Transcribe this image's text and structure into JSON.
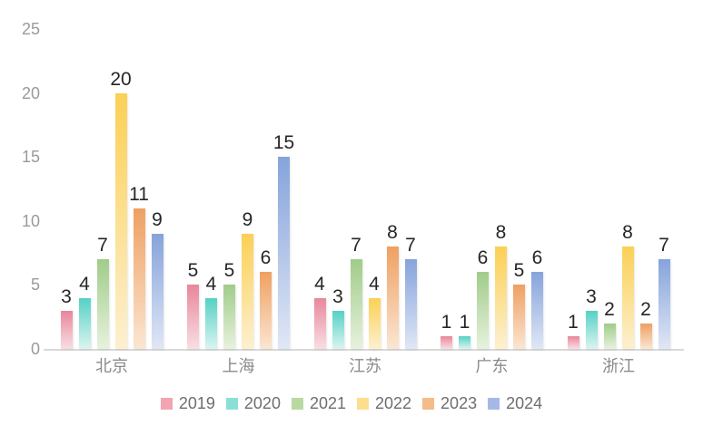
{
  "chart_data": {
    "type": "bar",
    "title": "",
    "xlabel": "",
    "ylabel": "",
    "categories": [
      "北京",
      "上海",
      "江苏",
      "广东",
      "浙江"
    ],
    "series": [
      {
        "name": "2019",
        "color_top": "#e8879b",
        "color_bottom": "#f8dee3",
        "color_legend": "#f2a4b2",
        "values": [
          3,
          5,
          4,
          1,
          1
        ]
      },
      {
        "name": "2020",
        "color_top": "#56d1c5",
        "color_bottom": "#daf4f0",
        "color_legend": "#8adfd6",
        "values": [
          4,
          4,
          3,
          1,
          3
        ]
      },
      {
        "name": "2021",
        "color_top": "#a0cc89",
        "color_bottom": "#e7f2dd",
        "color_legend": "#b8daa2",
        "values": [
          7,
          5,
          7,
          6,
          2
        ]
      },
      {
        "name": "2022",
        "color_top": "#fbd055",
        "color_bottom": "#fdf0d0",
        "color_legend": "#fcdf8e",
        "values": [
          20,
          9,
          4,
          8,
          8
        ]
      },
      {
        "name": "2023",
        "color_top": "#efa062",
        "color_bottom": "#fbe6d2",
        "color_legend": "#f5bb8b",
        "values": [
          11,
          6,
          8,
          5,
          2
        ]
      },
      {
        "name": "2024",
        "color_top": "#86a3db",
        "color_bottom": "#e0e7f6",
        "color_legend": "#a5b9e6",
        "values": [
          9,
          15,
          7,
          6,
          7
        ]
      }
    ],
    "yticks": [
      0,
      5,
      10,
      15,
      20,
      25
    ],
    "ylim": [
      0,
      25
    ],
    "grid": false,
    "data_labels": true,
    "legend_position": "bottom"
  },
  "colors": {
    "background": "#ffffff",
    "axis_line": "#d9d9d9",
    "tick_label": "#9a9a9a",
    "category_label": "#8a8a8a",
    "data_label": "#262626",
    "legend_label": "#6e6e6e"
  }
}
